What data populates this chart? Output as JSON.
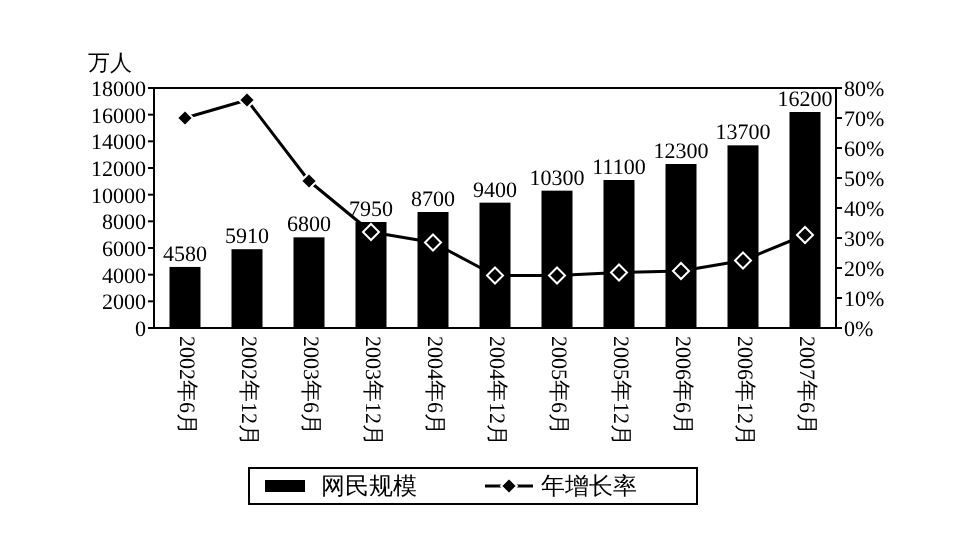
{
  "chart_data": {
    "type": "bar",
    "ylabel": "万人",
    "categories": [
      "2002年6月",
      "2002年12月",
      "2003年6月",
      "2003年12月",
      "2004年6月",
      "2004年12月",
      "2005年6月",
      "2005年12月",
      "2006年6月",
      "2006年12月",
      "2007年6月"
    ],
    "series": [
      {
        "name": "网民规模",
        "color": "#000000",
        "values": [
          4580,
          5910,
          6800,
          7950,
          8700,
          9400,
          10300,
          11100,
          12300,
          13700,
          16200
        ],
        "data_labels": true
      },
      {
        "name": "年增长率",
        "type": "line",
        "axis": "y2",
        "color": "#000000",
        "marker": "diamond",
        "values": [
          70,
          76,
          49,
          32,
          28.5,
          17.5,
          17.5,
          18.5,
          19,
          22.5,
          31
        ]
      }
    ],
    "ylim": [
      0,
      18000
    ],
    "yticks": [
      0,
      2000,
      4000,
      6000,
      8000,
      10000,
      12000,
      14000,
      16000,
      18000
    ],
    "y2lim": [
      0,
      80
    ],
    "y2ticks": [
      {
        "value": 0,
        "label": "0%"
      },
      {
        "value": 10,
        "label": "10%"
      },
      {
        "value": 20,
        "label": "20%"
      },
      {
        "value": 30,
        "label": "30%"
      },
      {
        "value": 40,
        "label": "40%"
      },
      {
        "value": 50,
        "label": "50%"
      },
      {
        "value": 60,
        "label": "60%"
      },
      {
        "value": 70,
        "label": "70%"
      },
      {
        "value": 80,
        "label": "80%"
      }
    ],
    "legend": "bottom",
    "grid": false
  }
}
